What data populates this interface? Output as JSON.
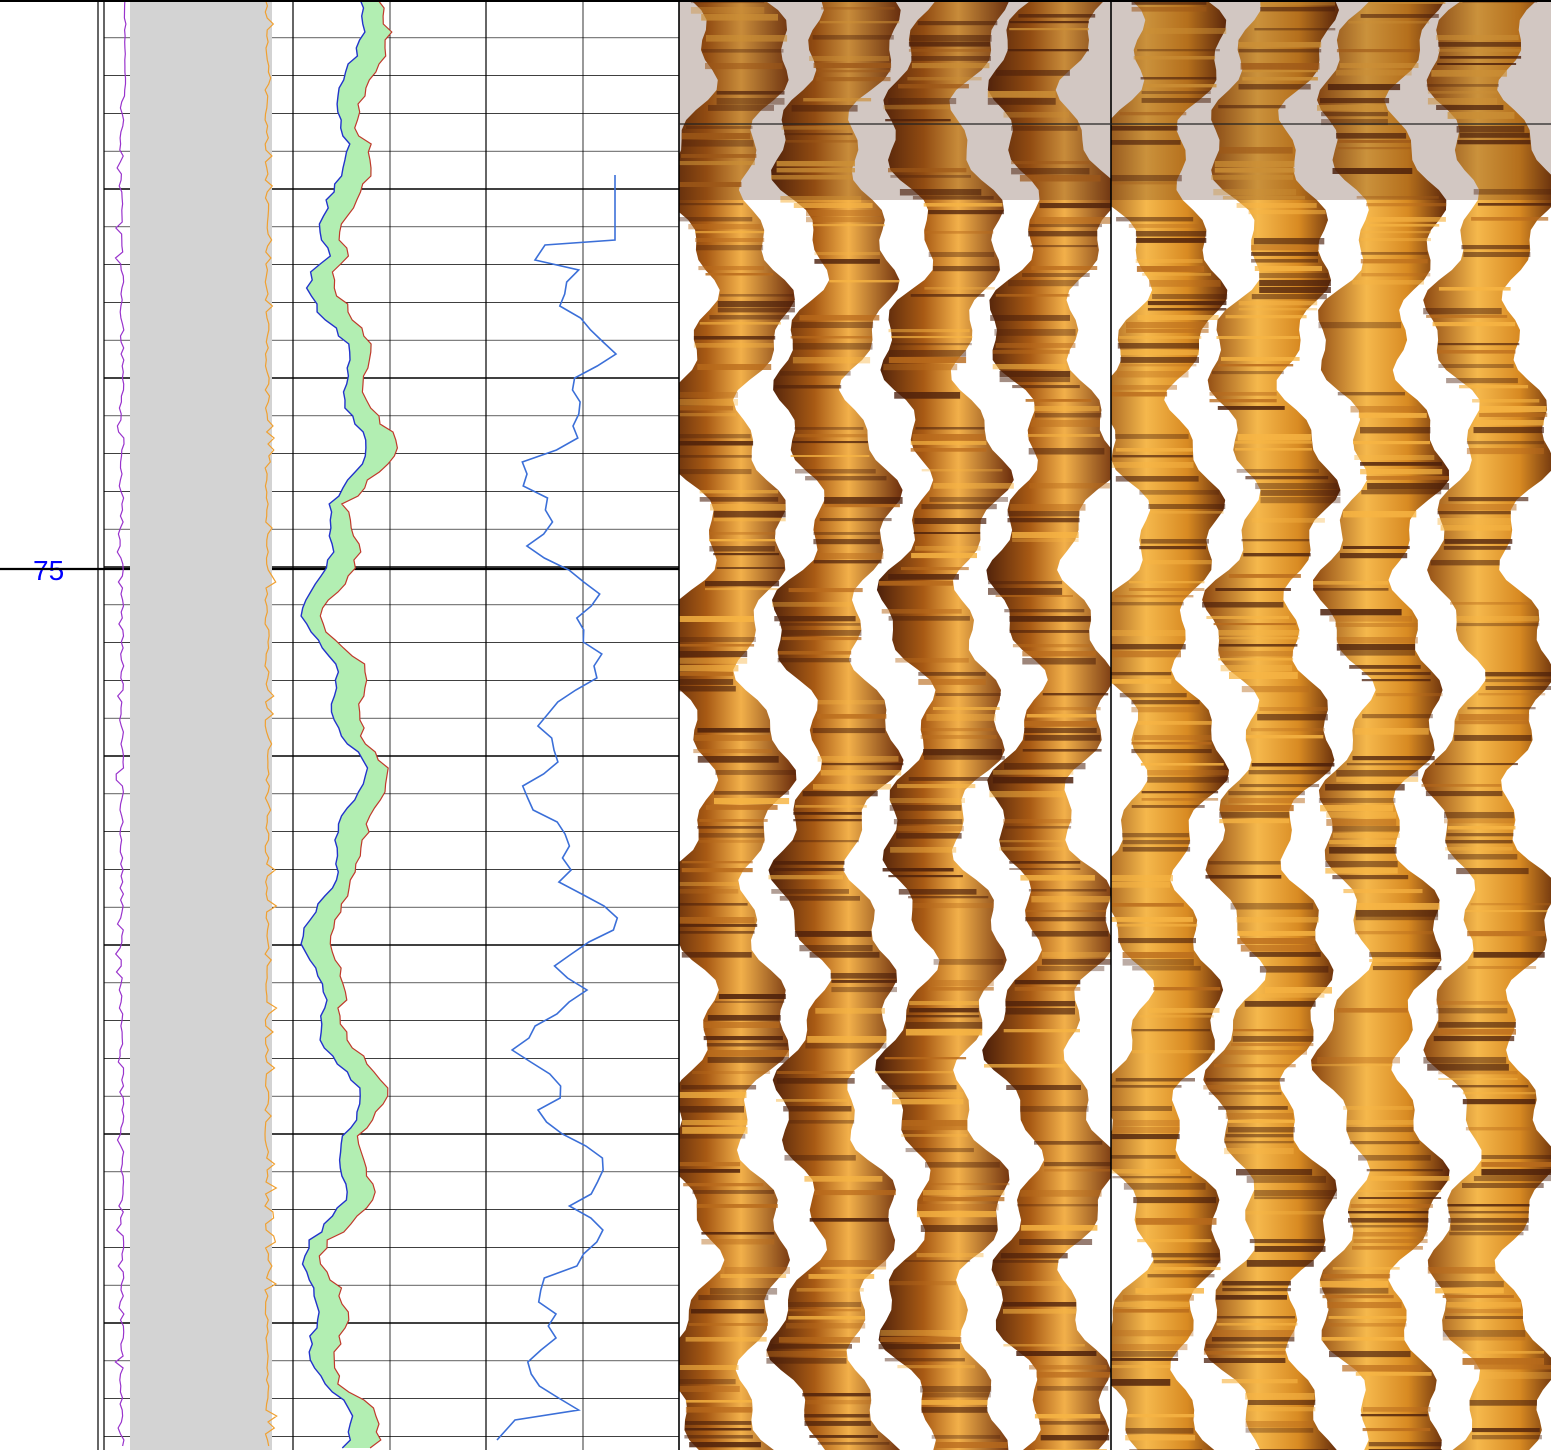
{
  "depth_track": {
    "label": "75",
    "label_color": "#0000ff"
  },
  "colors": {
    "caliper_fill": "#d3d3d3",
    "caliper_left_curve": "#9933cc",
    "caliper_right_curve": "#f0a030",
    "crossover_fill": "#b2eeb2",
    "curve_red": "#c0392b",
    "curve_blue": "#2233cc",
    "curve_track3": "#3b6fd8",
    "image_dark": "#4a1e0a",
    "image_mid": "#b86a1c",
    "image_light": "#f7b544",
    "grid": "#000000"
  },
  "image_panels": [
    {
      "name": "static-image"
    },
    {
      "name": "dynamic-image"
    }
  ]
}
